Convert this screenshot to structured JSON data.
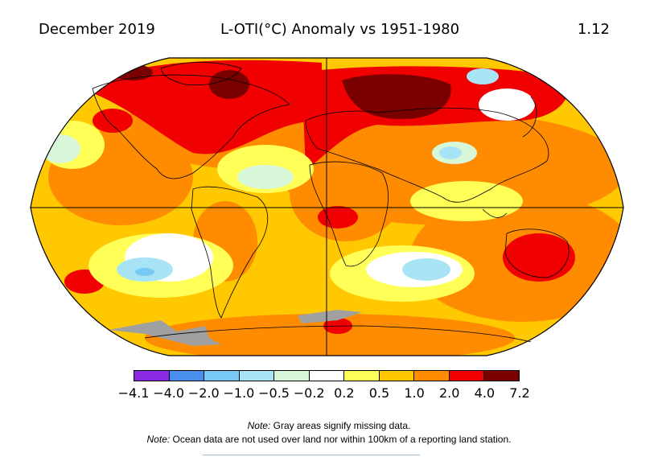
{
  "header": {
    "date": "December 2019",
    "title": "L-OTI(°C) Anomaly vs 1951-1980",
    "global_mean": "1.12"
  },
  "legend": {
    "colors": [
      "#8a2be2",
      "#4a8ef0",
      "#78c8f5",
      "#a8e4f5",
      "#d8f6d8",
      "#ffffff",
      "#ffff58",
      "#ffc800",
      "#ff8c00",
      "#f00000",
      "#7a0000"
    ],
    "ticks": [
      "−4.1",
      "−4.0",
      "−2.0",
      "−1.0",
      "−0.5",
      "−0.2",
      "0.2",
      "0.5",
      "1.0",
      "2.0",
      "4.0",
      "7.2"
    ]
  },
  "map": {
    "projection": "Robinson",
    "missing_color": "#a0a0a0",
    "regions": [
      {
        "name": "siberia-hotspot",
        "anomaly": 7.2
      },
      {
        "name": "north-america-east-warm",
        "anomaly": 4.0
      },
      {
        "name": "north-atlantic-warm",
        "anomaly": 4.0
      },
      {
        "name": "australia-warm",
        "anomaly": 4.0
      },
      {
        "name": "southern-indian-ocean-cool",
        "anomaly": -1.0
      },
      {
        "name": "southeast-pacific-cool",
        "anomaly": -1.0
      },
      {
        "name": "central-asia-cool",
        "anomaly": -1.0
      },
      {
        "name": "antarctica-missing",
        "anomaly": null
      }
    ]
  },
  "notes": {
    "note1_label": "Note:",
    "note1_text": " Gray areas signify missing data.",
    "note2_label": "Note:",
    "note2_text": " Ocean data are not used over land nor within 100km of a reporting land station."
  }
}
